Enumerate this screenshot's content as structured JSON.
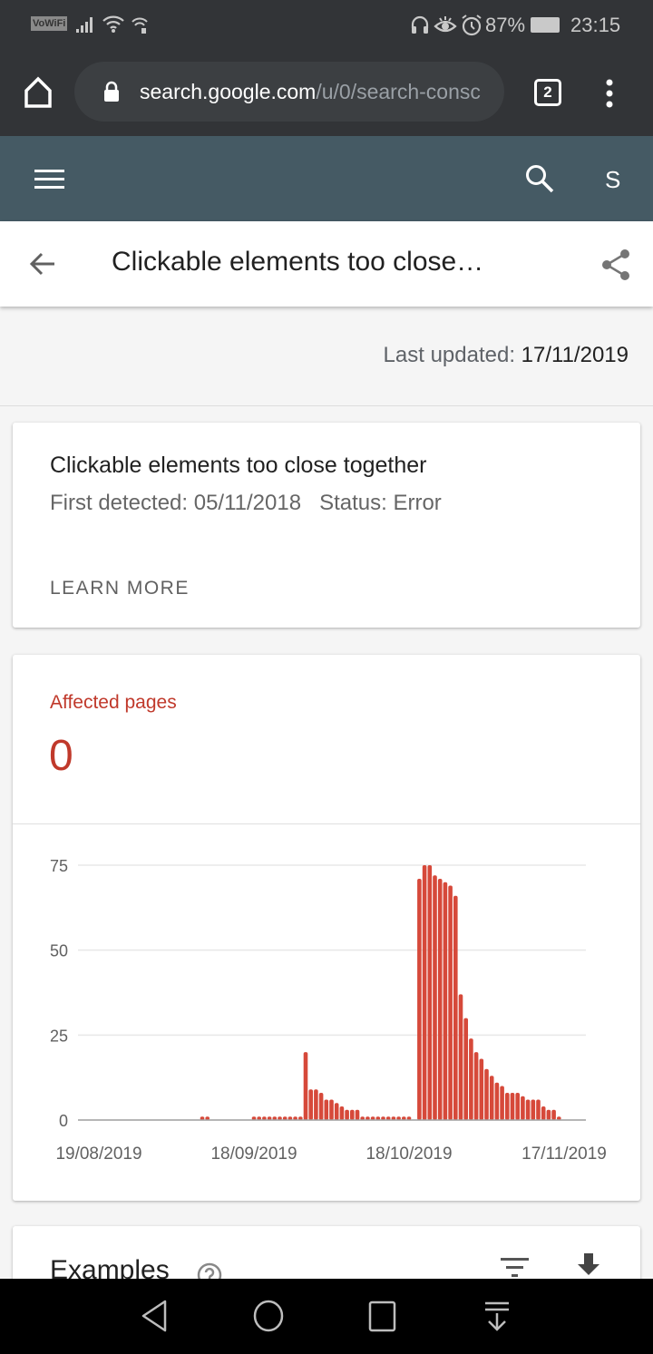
{
  "status_bar": {
    "vowifi": "VoWiFi",
    "battery": "87%",
    "time": "23:15"
  },
  "browser": {
    "url_host": "search.google.com",
    "url_path": "/u/0/search-consc",
    "tab_count": "2"
  },
  "app_bar": {
    "avatar_letter": "S"
  },
  "title_bar": {
    "title": "Clickable elements too close…"
  },
  "last_updated": {
    "label": "Last updated:",
    "value": "17/11/2019"
  },
  "issue_card": {
    "title": "Clickable elements too close together",
    "first_detected": "First detected: 05/11/2018",
    "status": "Status: Error",
    "learn_more": "LEARN MORE"
  },
  "affected_card": {
    "label": "Affected pages",
    "value": "0"
  },
  "examples_card": {
    "title": "Examples"
  },
  "colors": {
    "bar": "#d6493a",
    "accent_text": "#c0392b",
    "app_bar": "#455a64"
  },
  "chart_data": {
    "type": "bar",
    "y_ticks": [
      "0",
      "25",
      "50",
      "75"
    ],
    "ylim": [
      0,
      75
    ],
    "x_tick_labels": [
      "19/08/2019",
      "18/09/2019",
      "18/10/2019",
      "17/11/2019"
    ],
    "grid": true,
    "x": [
      "19/08",
      "20/08",
      "21/08",
      "22/08",
      "23/08",
      "24/08",
      "25/08",
      "26/08",
      "27/08",
      "28/08",
      "29/08",
      "30/08",
      "31/08",
      "01/09",
      "02/09",
      "03/09",
      "04/09",
      "05/09",
      "06/09",
      "07/09",
      "08/09",
      "09/09",
      "10/09",
      "11/09",
      "12/09",
      "13/09",
      "14/09",
      "15/09",
      "16/09",
      "17/09",
      "18/09",
      "19/09",
      "20/09",
      "21/09",
      "22/09",
      "23/09",
      "24/09",
      "25/09",
      "26/09",
      "27/09",
      "28/09",
      "29/09",
      "30/09",
      "01/10",
      "02/10",
      "03/10",
      "04/10",
      "05/10",
      "06/10",
      "07/10",
      "08/10",
      "09/10",
      "10/10",
      "11/10",
      "12/10",
      "13/10",
      "14/10",
      "15/10",
      "16/10",
      "17/10",
      "18/10",
      "19/10",
      "20/10",
      "21/10",
      "22/10",
      "23/10",
      "24/10",
      "25/10",
      "26/10",
      "27/10",
      "28/10",
      "29/10",
      "30/10",
      "31/10",
      "01/11",
      "02/11",
      "03/11",
      "04/11",
      "05/11",
      "06/11",
      "07/11",
      "08/11",
      "09/11",
      "10/11",
      "11/11",
      "12/11",
      "13/11",
      "14/11",
      "15/11",
      "16/11",
      "17/11"
    ],
    "values": [
      0,
      0,
      0,
      0,
      0,
      0,
      0,
      0,
      0,
      0,
      0,
      0,
      0,
      0,
      0,
      0,
      0,
      0,
      0,
      0,
      1,
      1,
      0,
      0,
      0,
      0,
      0,
      0,
      0,
      0,
      1,
      1,
      1,
      1,
      1,
      1,
      1,
      1,
      1,
      1,
      20,
      9,
      9,
      8,
      6,
      6,
      5,
      4,
      3,
      3,
      3,
      1,
      1,
      1,
      1,
      1,
      1,
      1,
      1,
      1,
      1,
      0,
      71,
      75,
      75,
      72,
      71,
      70,
      69,
      66,
      37,
      30,
      24,
      20,
      18,
      15,
      13,
      11,
      10,
      8,
      8,
      8,
      7,
      6,
      6,
      6,
      4,
      3,
      3,
      1,
      0
    ]
  }
}
